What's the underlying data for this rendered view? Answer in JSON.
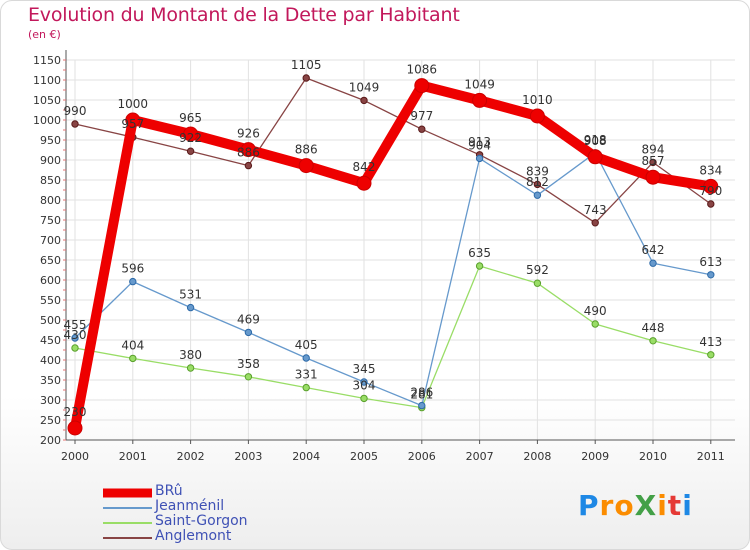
{
  "title": "Evolution du Montant de la Dette par Habitant",
  "subtitle": "(en €)",
  "logo": {
    "text": "ProXiti",
    "letters": [
      "P",
      "r",
      "o",
      "X",
      "i",
      "t",
      "i"
    ],
    "colors": [
      "#1e88e5",
      "#fb8c00",
      "#fb8c00",
      "#43a047",
      "#fb8c00",
      "#e53935",
      "#1e88e5"
    ]
  },
  "chart_data": {
    "type": "line",
    "title": "Evolution du Montant de la Dette par Habitant",
    "ylabel": "(en €)",
    "x": [
      "2000",
      "2001",
      "2002",
      "2003",
      "2004",
      "2005",
      "2006",
      "2007",
      "2008",
      "2009",
      "2010",
      "2011"
    ],
    "ylim": [
      200,
      1150
    ],
    "yticks": [
      200,
      250,
      300,
      350,
      400,
      450,
      500,
      550,
      600,
      650,
      700,
      750,
      800,
      850,
      900,
      950,
      1000,
      1050,
      1100,
      1150
    ],
    "grid": true,
    "legend_position": "bottom-left",
    "series": [
      {
        "name": "BRû",
        "color": "#ee0000",
        "values": [
          230,
          1000,
          965,
          926,
          886,
          842,
          1086,
          1049,
          1010,
          908,
          857,
          834
        ]
      },
      {
        "name": "Jeanménil",
        "color": "#6699cc",
        "values": [
          455,
          596,
          531,
          469,
          405,
          345,
          286,
          904,
          812,
          918,
          642,
          613
        ]
      },
      {
        "name": "Saint-Gorgon",
        "color": "#99dd66",
        "values": [
          430,
          404,
          380,
          358,
          331,
          304,
          281,
          635,
          592,
          490,
          448,
          413
        ]
      },
      {
        "name": "Anglemont",
        "color": "#884444",
        "values": [
          990,
          957,
          922,
          886,
          1105,
          1049,
          977,
          913,
          839,
          743,
          894,
          790
        ]
      }
    ]
  }
}
